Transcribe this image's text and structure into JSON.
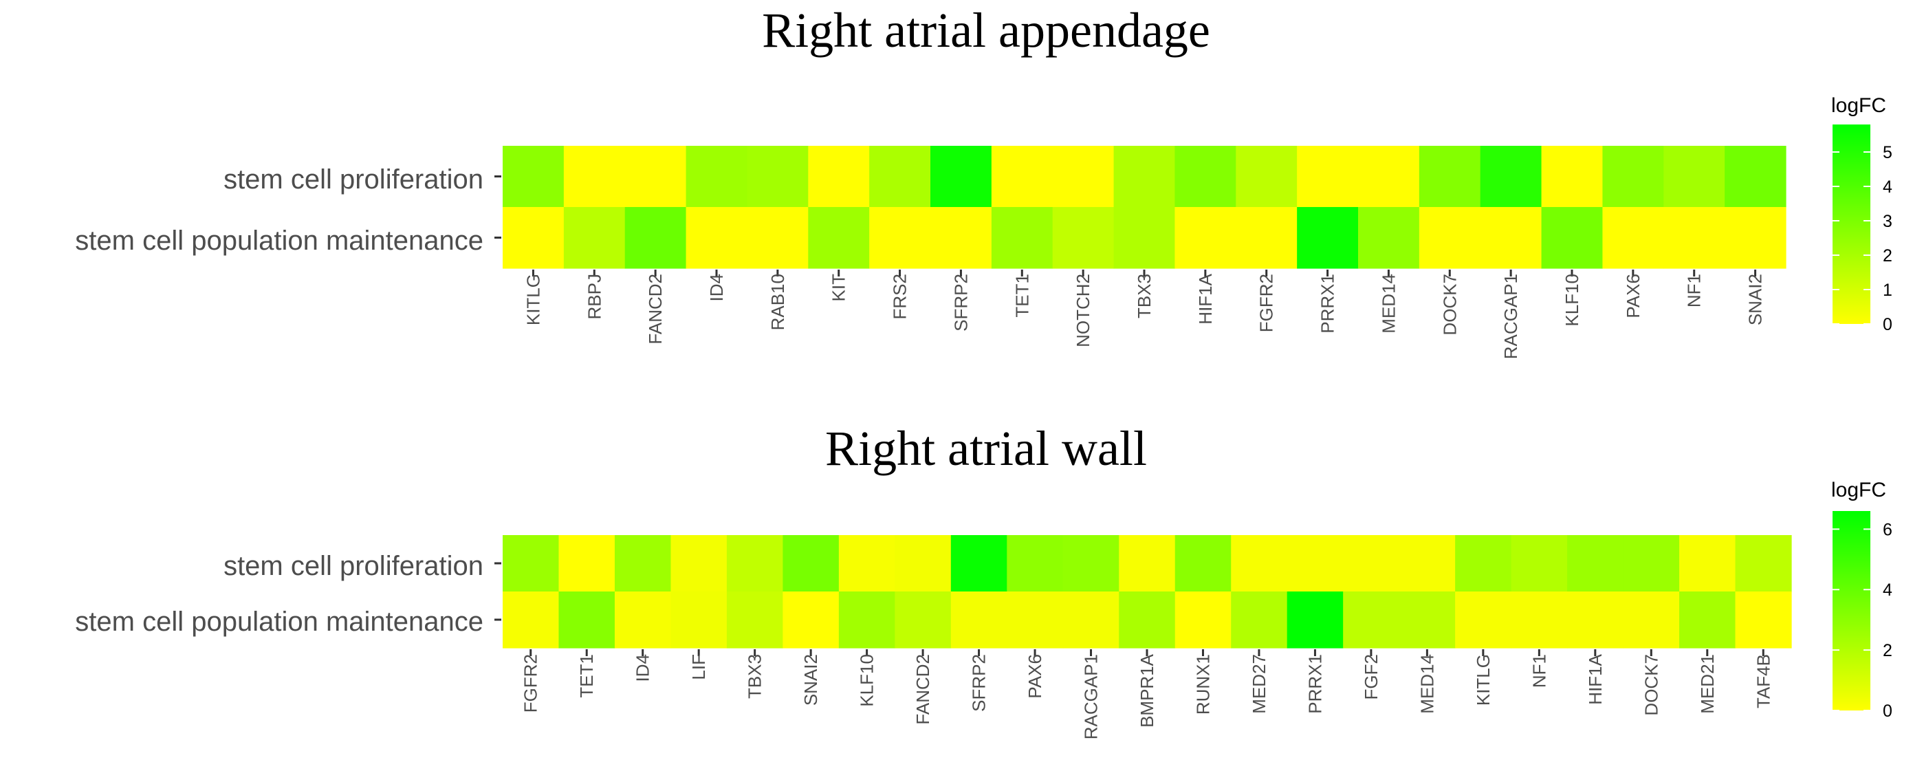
{
  "chart_data": [
    {
      "type": "heatmap",
      "title": "Right atrial appendage",
      "rows": [
        "stem cell proliferation",
        "stem cell population maintenance"
      ],
      "columns": [
        "KITLG",
        "RBPJ",
        "FANCD2",
        "ID4",
        "RAB10",
        "KIT",
        "FRS2",
        "SFRP2",
        "TET1",
        "NOTCH2",
        "TBX3",
        "HIF1A",
        "FGFR2",
        "PRRX1",
        "MED14",
        "DOCK7",
        "RACGAP1",
        "KLF10",
        "PAX6",
        "NF1",
        "SNAI2"
      ],
      "values": [
        [
          2.6,
          0,
          0,
          2.2,
          2.1,
          0,
          1.9,
          5.5,
          0,
          0,
          1.8,
          2.8,
          1.5,
          0,
          0,
          2.8,
          4.9,
          0,
          2.6,
          2.1,
          3.2
        ],
        [
          0,
          1.6,
          3.4,
          0,
          0,
          2.2,
          0,
          0,
          2.2,
          1.4,
          1.8,
          0,
          0,
          5.6,
          2.5,
          0,
          0,
          3.1,
          0,
          0,
          0
        ]
      ],
      "legend": {
        "title": "logFC",
        "min": 0,
        "max": 5.8,
        "ticks": [
          0,
          1,
          2,
          3,
          4,
          5
        ]
      },
      "color_low": "#ffff00",
      "color_high": "#00ff00"
    },
    {
      "type": "heatmap",
      "title": "Right atrial wall",
      "rows": [
        "stem cell proliferation",
        "stem cell population maintenance"
      ],
      "columns": [
        "FGFR2",
        "TET1",
        "ID4",
        "LIF",
        "TBX3",
        "SNAI2",
        "KLF10",
        "FANCD2",
        "SFRP2",
        "PAX6",
        "RACGAP1",
        "BMPR1A",
        "RUNX1",
        "MED27",
        "PRRX1",
        "FGF2",
        "MED14",
        "KITLG",
        "NF1",
        "HIF1A",
        "DOCK7",
        "MED21",
        "TAF4B"
      ],
      "values": [
        [
          2.6,
          0,
          2.5,
          0.3,
          1.6,
          3.5,
          0.2,
          0.3,
          6.4,
          2.9,
          2.8,
          0.2,
          3.0,
          0.2,
          0.2,
          0.2,
          0.2,
          2.4,
          2.0,
          2.6,
          2.6,
          0.2,
          1.7
        ],
        [
          0.2,
          3.1,
          0.2,
          0.4,
          1.4,
          0,
          2.4,
          1.6,
          0.3,
          0.3,
          0.3,
          2.2,
          0,
          2.0,
          6.6,
          1.7,
          1.7,
          0.2,
          0.2,
          0.2,
          0.2,
          2.3,
          0
        ]
      ],
      "legend": {
        "title": "logFC",
        "min": 0,
        "max": 6.6,
        "ticks": [
          0,
          2,
          4,
          6
        ]
      },
      "color_low": "#ffff00",
      "color_high": "#00ff00"
    }
  ]
}
